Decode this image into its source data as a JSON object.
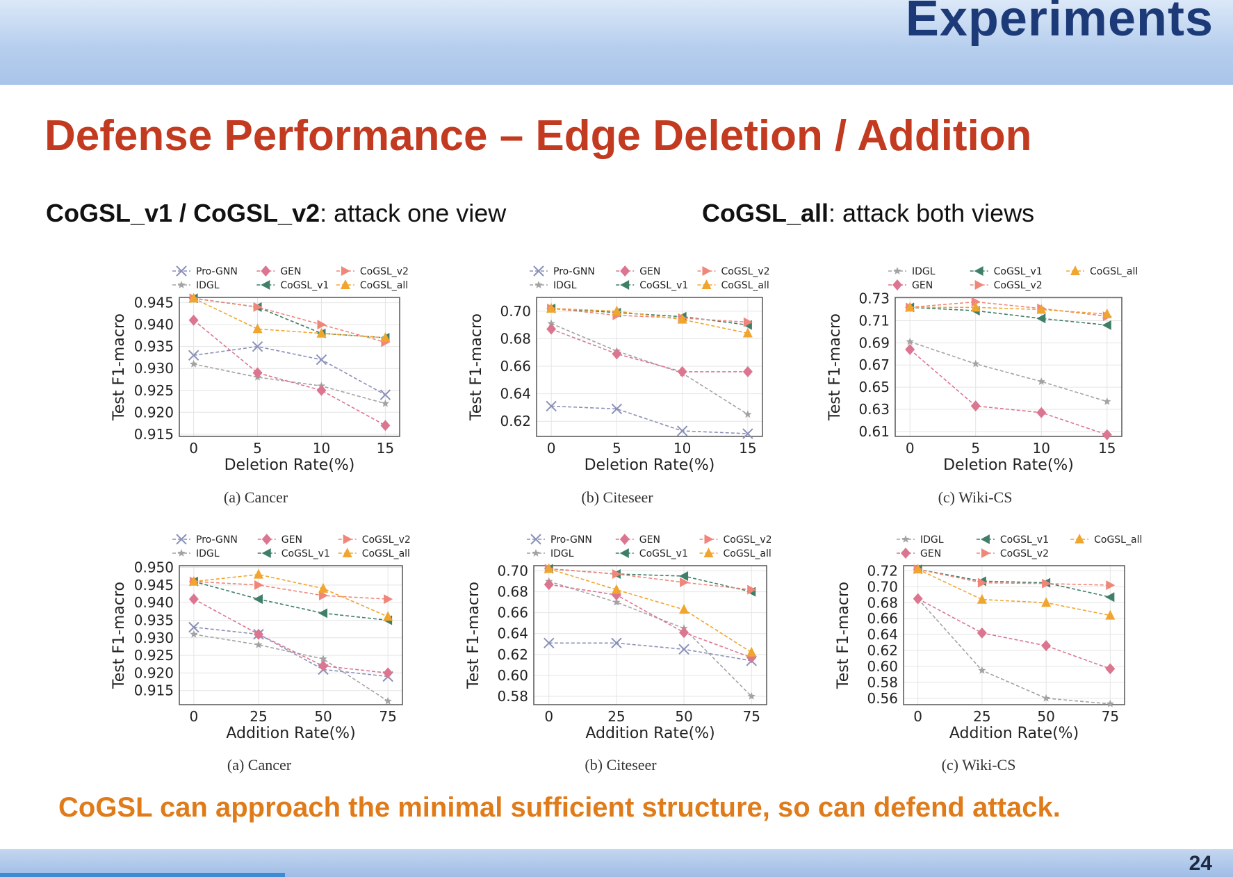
{
  "header": {
    "title": "Experiments"
  },
  "slide": {
    "title": "Defense Performance – Edge Deletion / Addition",
    "subtitle_left": {
      "bold": "CoGSL_v1 / CoGSL_v2",
      "rest": ": attack one view"
    },
    "subtitle_right": {
      "bold": "CoGSL_all",
      "rest": ": attack both views"
    },
    "conclusion": "CoGSL can approach the minimal sufficient structure, so can defend attack.",
    "page_number": "24"
  },
  "colors": {
    "Pro-GNN": "#8a8fb8",
    "IDGL": "#a3a3a3",
    "GEN": "#dc7590",
    "CoGSL_v1": "#3f7f68",
    "CoGSL_v2": "#f0867a",
    "CoGSL_all": "#f0a52e"
  },
  "chart_data": [
    {
      "type": "line",
      "caption": "(a)  Cancer",
      "xlabel": "Deletion Rate(%)",
      "ylabel": "Test F1-macro",
      "x": [
        0,
        5,
        10,
        15
      ],
      "xticks": [
        "0",
        "5",
        "10",
        "15"
      ],
      "ylim": [
        0.9145,
        0.9462
      ],
      "yticks": [
        0.915,
        0.92,
        0.925,
        0.93,
        0.935,
        0.94,
        0.945
      ],
      "ytick_labels": [
        "0.915",
        "0.920",
        "0.925",
        "0.930",
        "0.935",
        "0.940",
        "0.945"
      ],
      "legend": [
        "Pro-GNN",
        "IDGL",
        "GEN",
        "CoGSL_v1",
        "CoGSL_v2",
        "CoGSL_all"
      ],
      "series": [
        {
          "name": "Pro-GNN",
          "values": [
            0.933,
            0.935,
            0.932,
            0.924
          ]
        },
        {
          "name": "IDGL",
          "values": [
            0.931,
            0.928,
            0.926,
            0.922
          ]
        },
        {
          "name": "GEN",
          "values": [
            0.941,
            0.929,
            0.925,
            0.917
          ]
        },
        {
          "name": "CoGSL_v1",
          "values": [
            0.946,
            0.944,
            0.938,
            0.937
          ]
        },
        {
          "name": "CoGSL_v2",
          "values": [
            0.946,
            0.944,
            0.94,
            0.936
          ]
        },
        {
          "name": "CoGSL_all",
          "values": [
            0.946,
            0.939,
            0.938,
            0.937
          ]
        }
      ]
    },
    {
      "type": "line",
      "caption": "(b)  Citeseer",
      "xlabel": "Deletion Rate(%)",
      "ylabel": "Test F1-macro",
      "x": [
        0,
        5,
        10,
        15
      ],
      "xticks": [
        "0",
        "5",
        "10",
        "15"
      ],
      "ylim": [
        0.609,
        0.71
      ],
      "yticks": [
        0.62,
        0.64,
        0.66,
        0.68,
        0.7
      ],
      "ytick_labels": [
        "0.62",
        "0.64",
        "0.66",
        "0.68",
        "0.70"
      ],
      "legend": [
        "Pro-GNN",
        "IDGL",
        "GEN",
        "CoGSL_v1",
        "CoGSL_v2",
        "CoGSL_all"
      ],
      "series": [
        {
          "name": "Pro-GNN",
          "values": [
            0.631,
            0.629,
            0.613,
            0.611
          ]
        },
        {
          "name": "IDGL",
          "values": [
            0.691,
            0.671,
            0.655,
            0.625
          ]
        },
        {
          "name": "GEN",
          "values": [
            0.687,
            0.669,
            0.656,
            0.656
          ]
        },
        {
          "name": "CoGSL_v1",
          "values": [
            0.702,
            0.699,
            0.696,
            0.69
          ]
        },
        {
          "name": "CoGSL_v2",
          "values": [
            0.702,
            0.697,
            0.695,
            0.692
          ]
        },
        {
          "name": "CoGSL_all",
          "values": [
            0.702,
            0.7,
            0.694,
            0.684
          ]
        }
      ]
    },
    {
      "type": "line",
      "caption": "(c)  Wiki-CS",
      "xlabel": "Deletion Rate(%)",
      "ylabel": "Test F1-macro",
      "x": [
        0,
        5,
        10,
        15
      ],
      "xticks": [
        "0",
        "5",
        "10",
        "15"
      ],
      "ylim": [
        0.6055,
        0.731
      ],
      "yticks": [
        0.61,
        0.63,
        0.65,
        0.67,
        0.69,
        0.71,
        0.73
      ],
      "ytick_labels": [
        "0.61",
        "0.63",
        "0.65",
        "0.67",
        "0.69",
        "0.71",
        "0.73"
      ],
      "legend": [
        "IDGL",
        "GEN",
        "CoGSL_v1",
        "CoGSL_v2",
        "CoGSL_all"
      ],
      "series": [
        {
          "name": "IDGL",
          "values": [
            0.691,
            0.671,
            0.655,
            0.637
          ]
        },
        {
          "name": "GEN",
          "values": [
            0.684,
            0.633,
            0.627,
            0.607
          ]
        },
        {
          "name": "CoGSL_v1",
          "values": [
            0.722,
            0.719,
            0.712,
            0.706
          ]
        },
        {
          "name": "CoGSL_v2",
          "values": [
            0.722,
            0.727,
            0.721,
            0.714
          ]
        },
        {
          "name": "CoGSL_all",
          "values": [
            0.722,
            0.722,
            0.72,
            0.716
          ]
        }
      ]
    },
    {
      "type": "line",
      "caption": "(a)  Cancer",
      "xlabel": "Addition Rate(%)",
      "ylabel": "Test F1-macro",
      "x": [
        0,
        25,
        50,
        75
      ],
      "xticks": [
        "0",
        "25",
        "50",
        "75"
      ],
      "ylim": [
        0.911,
        0.9505
      ],
      "yticks": [
        0.915,
        0.92,
        0.925,
        0.93,
        0.935,
        0.94,
        0.945,
        0.95
      ],
      "ytick_labels": [
        "0.915",
        "0.920",
        "0.925",
        "0.930",
        "0.935",
        "0.940",
        "0.945",
        "0.950"
      ],
      "legend": [
        "Pro-GNN",
        "IDGL",
        "GEN",
        "CoGSL_v1",
        "CoGSL_v2",
        "CoGSL_all"
      ],
      "series": [
        {
          "name": "Pro-GNN",
          "values": [
            0.933,
            0.931,
            0.921,
            0.919
          ]
        },
        {
          "name": "IDGL",
          "values": [
            0.931,
            0.928,
            0.924,
            0.912
          ]
        },
        {
          "name": "GEN",
          "values": [
            0.941,
            0.931,
            0.922,
            0.92
          ]
        },
        {
          "name": "CoGSL_v1",
          "values": [
            0.946,
            0.941,
            0.937,
            0.935
          ]
        },
        {
          "name": "CoGSL_v2",
          "values": [
            0.946,
            0.945,
            0.942,
            0.941
          ]
        },
        {
          "name": "CoGSL_all",
          "values": [
            0.946,
            0.948,
            0.944,
            0.936
          ]
        }
      ]
    },
    {
      "type": "line",
      "caption": "(b)  Citeseer",
      "xlabel": "Addition Rate(%)",
      "ylabel": "Test F1-macro",
      "x": [
        0,
        25,
        50,
        75
      ],
      "xticks": [
        "0",
        "25",
        "50",
        "75"
      ],
      "ylim": [
        0.572,
        0.705
      ],
      "yticks": [
        0.58,
        0.6,
        0.62,
        0.64,
        0.66,
        0.68,
        0.7
      ],
      "ytick_labels": [
        "0.58",
        "0.60",
        "0.62",
        "0.64",
        "0.66",
        "0.68",
        "0.70"
      ],
      "legend": [
        "Pro-GNN",
        "IDGL",
        "GEN",
        "CoGSL_v1",
        "CoGSL_v2",
        "CoGSL_all"
      ],
      "series": [
        {
          "name": "Pro-GNN",
          "values": [
            0.631,
            0.631,
            0.625,
            0.614
          ]
        },
        {
          "name": "IDGL",
          "values": [
            0.69,
            0.67,
            0.645,
            0.58
          ]
        },
        {
          "name": "GEN",
          "values": [
            0.687,
            0.677,
            0.641,
            0.617
          ]
        },
        {
          "name": "CoGSL_v1",
          "values": [
            0.702,
            0.697,
            0.695,
            0.68
          ]
        },
        {
          "name": "CoGSL_v2",
          "values": [
            0.702,
            0.697,
            0.689,
            0.682
          ]
        },
        {
          "name": "CoGSL_all",
          "values": [
            0.702,
            0.682,
            0.663,
            0.622
          ]
        }
      ]
    },
    {
      "type": "line",
      "caption": "(c)  Wiki-CS",
      "xlabel": "Addition Rate(%)",
      "ylabel": "Test F1-macro",
      "x": [
        0,
        25,
        50,
        75
      ],
      "xticks": [
        "0",
        "25",
        "50",
        "75"
      ],
      "ylim": [
        0.552,
        0.7265
      ],
      "yticks": [
        0.56,
        0.58,
        0.6,
        0.62,
        0.64,
        0.66,
        0.68,
        0.7,
        0.72
      ],
      "ytick_labels": [
        "0.56",
        "0.58",
        "0.60",
        "0.62",
        "0.64",
        "0.66",
        "0.68",
        "0.70",
        "0.72"
      ],
      "legend": [
        "IDGL",
        "GEN",
        "CoGSL_v1",
        "CoGSL_v2",
        "CoGSL_all"
      ],
      "series": [
        {
          "name": "IDGL",
          "values": [
            0.685,
            0.595,
            0.56,
            0.553
          ]
        },
        {
          "name": "GEN",
          "values": [
            0.685,
            0.642,
            0.626,
            0.597
          ]
        },
        {
          "name": "CoGSL_v1",
          "values": [
            0.722,
            0.707,
            0.705,
            0.687
          ]
        },
        {
          "name": "CoGSL_v2",
          "values": [
            0.722,
            0.705,
            0.704,
            0.702
          ]
        },
        {
          "name": "CoGSL_all",
          "values": [
            0.722,
            0.684,
            0.68,
            0.664
          ]
        }
      ]
    }
  ]
}
